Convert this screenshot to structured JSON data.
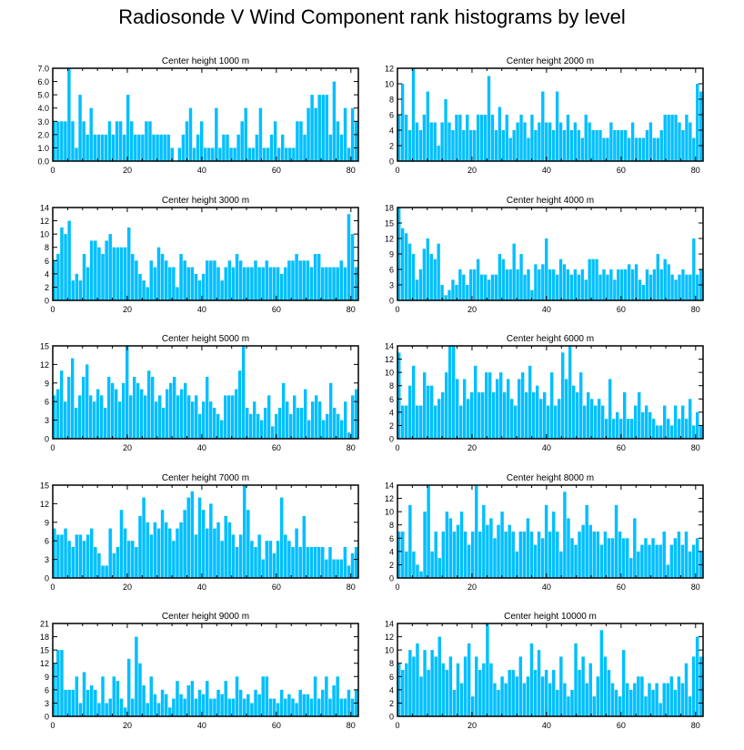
{
  "title": "Radiosonde V Wind Component rank histograms by level",
  "colors": {
    "bar_fill": "#00bfff",
    "bar_edge": "#ffffff",
    "axis": "#000000"
  },
  "chart_data": [
    {
      "type": "bar",
      "title": "Center height 1000 m",
      "xlabel": "",
      "ylabel": "",
      "x_range": [
        0,
        82
      ],
      "ylim": [
        0,
        7
      ],
      "x_ticks": [
        "0",
        "20",
        "40",
        "60",
        "80"
      ],
      "y_ticks": [
        "0.0",
        "1.0",
        "2.0",
        "3.0",
        "4.0",
        "5.0",
        "6.0",
        "7.0"
      ],
      "values": [
        3,
        3,
        3,
        3,
        7,
        3,
        1,
        5,
        3,
        2,
        4,
        2,
        2,
        2,
        2,
        3,
        2,
        3,
        3,
        2,
        5,
        3,
        2,
        2,
        2,
        3,
        3,
        2,
        2,
        2,
        2,
        2,
        1,
        0,
        1,
        2,
        3,
        4,
        1,
        2,
        3,
        1,
        1,
        1,
        4,
        1,
        2,
        2,
        1,
        1,
        2,
        3,
        4,
        1,
        1,
        2,
        4,
        1,
        1,
        2,
        3,
        1,
        2,
        1,
        1,
        1,
        3,
        3,
        2,
        4,
        5,
        4,
        5,
        5,
        5,
        2,
        6,
        3,
        2,
        4,
        1,
        4,
        3
      ]
    },
    {
      "type": "bar",
      "title": "Center height 2000 m",
      "xlabel": "",
      "ylabel": "",
      "x_range": [
        0,
        82
      ],
      "ylim": [
        0,
        12
      ],
      "x_ticks": [
        "0",
        "20",
        "40",
        "60",
        "80"
      ],
      "y_ticks": [
        "0",
        "2",
        "4",
        "6",
        "8",
        "10",
        "12"
      ],
      "values": [
        6,
        10,
        6,
        4,
        12,
        5,
        4,
        6,
        9,
        5,
        5,
        2,
        5,
        8,
        5,
        4,
        6,
        6,
        4,
        6,
        4,
        4,
        6,
        6,
        6,
        11,
        6,
        4,
        7,
        4,
        6,
        3,
        4,
        5,
        6,
        5,
        3,
        6,
        4,
        5,
        9,
        5,
        5,
        4,
        9,
        5,
        4,
        6,
        4,
        5,
        4,
        3,
        6,
        5,
        4,
        4,
        4,
        3,
        3,
        5,
        4,
        4,
        4,
        4,
        3,
        5,
        3,
        3,
        3,
        4,
        5,
        3,
        3,
        4,
        6,
        6,
        6,
        6,
        5,
        4,
        6,
        5,
        3,
        10,
        9
      ]
    },
    {
      "type": "bar",
      "title": "Center height 3000 m",
      "xlabel": "",
      "ylabel": "",
      "x_range": [
        0,
        82
      ],
      "ylim": [
        0,
        14
      ],
      "x_ticks": [
        "0",
        "20",
        "40",
        "60",
        "80"
      ],
      "y_ticks": [
        "0",
        "2",
        "4",
        "6",
        "8",
        "10",
        "12",
        "14"
      ],
      "values": [
        6,
        7,
        11,
        10,
        12,
        3,
        4,
        3,
        7,
        5,
        9,
        9,
        8,
        7,
        9,
        10,
        8,
        8,
        8,
        8,
        11,
        7,
        6,
        4,
        3,
        2,
        6,
        5,
        8,
        7,
        6,
        5,
        5,
        2,
        7,
        6,
        5,
        5,
        4,
        3,
        4,
        6,
        6,
        6,
        5,
        3,
        5,
        6,
        5,
        7,
        6,
        5,
        5,
        5,
        6,
        5,
        5,
        6,
        5,
        5,
        5,
        4,
        5,
        6,
        6,
        7,
        6,
        6,
        6,
        5,
        7,
        7,
        5,
        5,
        5,
        5,
        5,
        6,
        5,
        13,
        10,
        5
      ]
    },
    {
      "type": "bar",
      "title": "Center height 4000 m",
      "xlabel": "",
      "ylabel": "",
      "x_range": [
        0,
        82
      ],
      "ylim": [
        0,
        18
      ],
      "x_ticks": [
        "0",
        "20",
        "40",
        "60",
        "80"
      ],
      "y_ticks": [
        "0",
        "3",
        "6",
        "9",
        "12",
        "15",
        "18"
      ],
      "values": [
        18,
        14,
        13,
        11,
        9,
        4,
        6,
        10,
        12,
        9,
        8,
        11,
        3,
        1,
        2,
        4,
        3,
        6,
        5,
        3,
        6,
        6,
        8,
        5,
        5,
        4,
        5,
        5,
        9,
        8,
        6,
        6,
        11,
        6,
        9,
        5,
        6,
        2,
        7,
        6,
        7,
        12,
        6,
        6,
        5,
        8,
        7,
        6,
        5,
        6,
        5,
        6,
        4,
        8,
        8,
        8,
        5,
        6,
        5,
        6,
        4,
        6,
        6,
        6,
        7,
        6,
        7,
        4,
        3,
        6,
        5,
        6,
        9,
        6,
        8,
        7,
        5,
        4,
        5,
        6,
        5,
        5,
        12,
        5,
        6
      ]
    },
    {
      "type": "bar",
      "title": "Center height 5000 m",
      "xlabel": "",
      "ylabel": "",
      "x_range": [
        0,
        82
      ],
      "ylim": [
        0,
        15
      ],
      "x_ticks": [
        "0",
        "20",
        "40",
        "60",
        "80"
      ],
      "y_ticks": [
        "0",
        "3",
        "6",
        "9",
        "12",
        "15"
      ],
      "values": [
        7,
        8,
        11,
        6,
        10,
        13,
        5,
        7,
        10,
        12,
        7,
        6,
        8,
        7,
        5,
        10,
        9,
        8,
        6,
        9,
        15,
        7,
        10,
        9,
        8,
        7,
        11,
        10,
        6,
        7,
        5,
        8,
        9,
        10,
        7,
        8,
        9,
        7,
        6,
        7,
        4,
        6,
        10,
        6,
        5,
        4,
        3,
        7,
        7,
        7,
        8,
        11,
        15,
        5,
        4,
        6,
        4,
        3,
        5,
        7,
        2,
        4,
        5,
        9,
        6,
        4,
        7,
        5,
        5,
        8,
        3,
        6,
        7,
        6,
        3,
        4,
        9,
        5,
        4,
        3,
        6,
        1,
        7,
        8
      ]
    },
    {
      "type": "bar",
      "title": "Center height 6000 m",
      "xlabel": "",
      "ylabel": "",
      "x_range": [
        0,
        82
      ],
      "ylim": [
        0,
        14
      ],
      "x_ticks": [
        "0",
        "20",
        "40",
        "60",
        "80"
      ],
      "y_ticks": [
        "0",
        "2",
        "4",
        "6",
        "8",
        "10",
        "12",
        "14"
      ],
      "values": [
        13,
        5,
        5,
        8,
        11,
        5,
        5,
        10,
        8,
        8,
        5,
        6,
        7,
        10,
        14,
        14,
        9,
        5,
        9,
        6,
        7,
        11,
        7,
        7,
        10,
        10,
        7,
        9,
        10,
        7,
        9,
        6,
        5,
        9,
        10,
        7,
        11,
        7,
        8,
        6,
        7,
        5,
        10,
        5,
        6,
        13,
        9,
        14,
        8,
        7,
        10,
        5,
        7,
        6,
        5,
        6,
        5,
        3,
        9,
        3,
        4,
        3,
        7,
        3,
        3,
        5,
        7,
        4,
        5,
        4,
        3,
        2,
        2,
        5,
        3,
        2,
        5,
        3,
        5,
        3,
        6,
        2,
        4,
        2
      ]
    },
    {
      "type": "bar",
      "title": "Center height 7000 m",
      "xlabel": "",
      "ylabel": "",
      "x_range": [
        0,
        82
      ],
      "ylim": [
        0,
        15
      ],
      "x_ticks": [
        "0",
        "20",
        "40",
        "60",
        "80"
      ],
      "y_ticks": [
        "0",
        "3",
        "6",
        "9",
        "12",
        "15"
      ],
      "values": [
        8,
        7,
        7,
        8,
        6,
        5,
        7,
        7,
        6,
        7,
        8,
        5,
        4,
        2,
        2,
        8,
        4,
        5,
        11,
        8,
        6,
        6,
        5,
        10,
        13,
        9,
        7,
        9,
        8,
        11,
        9,
        8,
        6,
        8,
        9,
        11,
        13,
        14,
        7,
        13,
        11,
        8,
        12,
        8,
        9,
        6,
        10,
        9,
        7,
        5,
        7,
        15,
        11,
        6,
        5,
        7,
        3,
        6,
        6,
        4,
        6,
        13,
        7,
        6,
        5,
        8,
        5,
        10,
        5,
        5,
        5,
        5,
        5,
        3,
        5,
        3,
        3,
        3,
        5,
        2,
        4,
        5
      ]
    },
    {
      "type": "bar",
      "title": "Center height 8000 m",
      "xlabel": "",
      "ylabel": "",
      "x_range": [
        0,
        82
      ],
      "ylim": [
        0,
        14
      ],
      "x_ticks": [
        "0",
        "20",
        "40",
        "60",
        "80"
      ],
      "y_ticks": [
        "0",
        "2",
        "4",
        "6",
        "8",
        "10",
        "12",
        "14"
      ],
      "values": [
        7,
        7,
        4,
        11,
        4,
        2,
        1,
        10,
        14,
        4,
        7,
        3,
        7,
        10,
        9,
        7,
        8,
        10,
        7,
        5,
        7,
        14,
        7,
        11,
        8,
        9,
        6,
        8,
        10,
        7,
        8,
        7,
        4,
        7,
        7,
        9,
        7,
        5,
        7,
        6,
        11,
        7,
        10,
        7,
        4,
        13,
        9,
        6,
        5,
        7,
        8,
        11,
        8,
        7,
        7,
        5,
        7,
        6,
        6,
        11,
        7,
        6,
        6,
        3,
        9,
        4,
        5,
        6,
        5,
        6,
        5,
        5,
        7,
        2,
        5,
        6,
        7,
        5,
        7,
        4,
        5,
        6,
        4
      ]
    },
    {
      "type": "bar",
      "title": "Center height 9000 m",
      "xlabel": "",
      "ylabel": "",
      "x_range": [
        0,
        82
      ],
      "ylim": [
        0,
        21
      ],
      "x_ticks": [
        "0",
        "20",
        "40",
        "60",
        "80"
      ],
      "y_ticks": [
        "0",
        "3",
        "6",
        "9",
        "12",
        "15",
        "18",
        "21"
      ],
      "values": [
        12,
        15,
        15,
        6,
        6,
        6,
        9,
        3,
        10,
        6,
        7,
        6,
        3,
        9,
        3,
        4,
        9,
        8,
        4,
        2,
        13,
        4,
        18,
        12,
        7,
        3,
        9,
        5,
        3,
        6,
        5,
        2,
        4,
        8,
        5,
        4,
        7,
        8,
        4,
        6,
        5,
        8,
        4,
        4,
        6,
        5,
        8,
        4,
        4,
        9,
        6,
        4,
        5,
        3,
        6,
        5,
        9,
        9,
        4,
        4,
        3,
        6,
        4,
        5,
        4,
        3,
        6,
        5,
        5,
        4,
        9,
        4,
        6,
        9,
        4,
        7,
        9,
        4,
        4,
        6,
        4,
        6
      ]
    },
    {
      "type": "bar",
      "title": "Center height 10000 m",
      "xlabel": "",
      "ylabel": "",
      "x_range": [
        0,
        82
      ],
      "ylim": [
        0,
        14
      ],
      "x_ticks": [
        "0",
        "20",
        "40",
        "60",
        "80"
      ],
      "y_ticks": [
        "0",
        "2",
        "4",
        "6",
        "8",
        "10",
        "12",
        "14"
      ],
      "values": [
        8,
        7,
        8,
        10,
        9,
        11,
        6,
        10,
        7,
        10,
        9,
        12,
        8,
        7,
        9,
        4,
        8,
        5,
        9,
        11,
        3,
        9,
        7,
        8,
        14,
        8,
        5,
        4,
        6,
        5,
        7,
        7,
        6,
        9,
        5,
        6,
        11,
        7,
        10,
        6,
        7,
        5,
        7,
        4,
        9,
        5,
        3,
        4,
        11,
        7,
        9,
        5,
        8,
        3,
        6,
        13,
        9,
        7,
        5,
        4,
        3,
        10,
        5,
        4,
        5,
        6,
        6,
        3,
        5,
        4,
        5,
        2,
        5,
        5,
        6,
        4,
        6,
        5,
        8,
        3,
        9,
        12,
        9
      ]
    }
  ]
}
